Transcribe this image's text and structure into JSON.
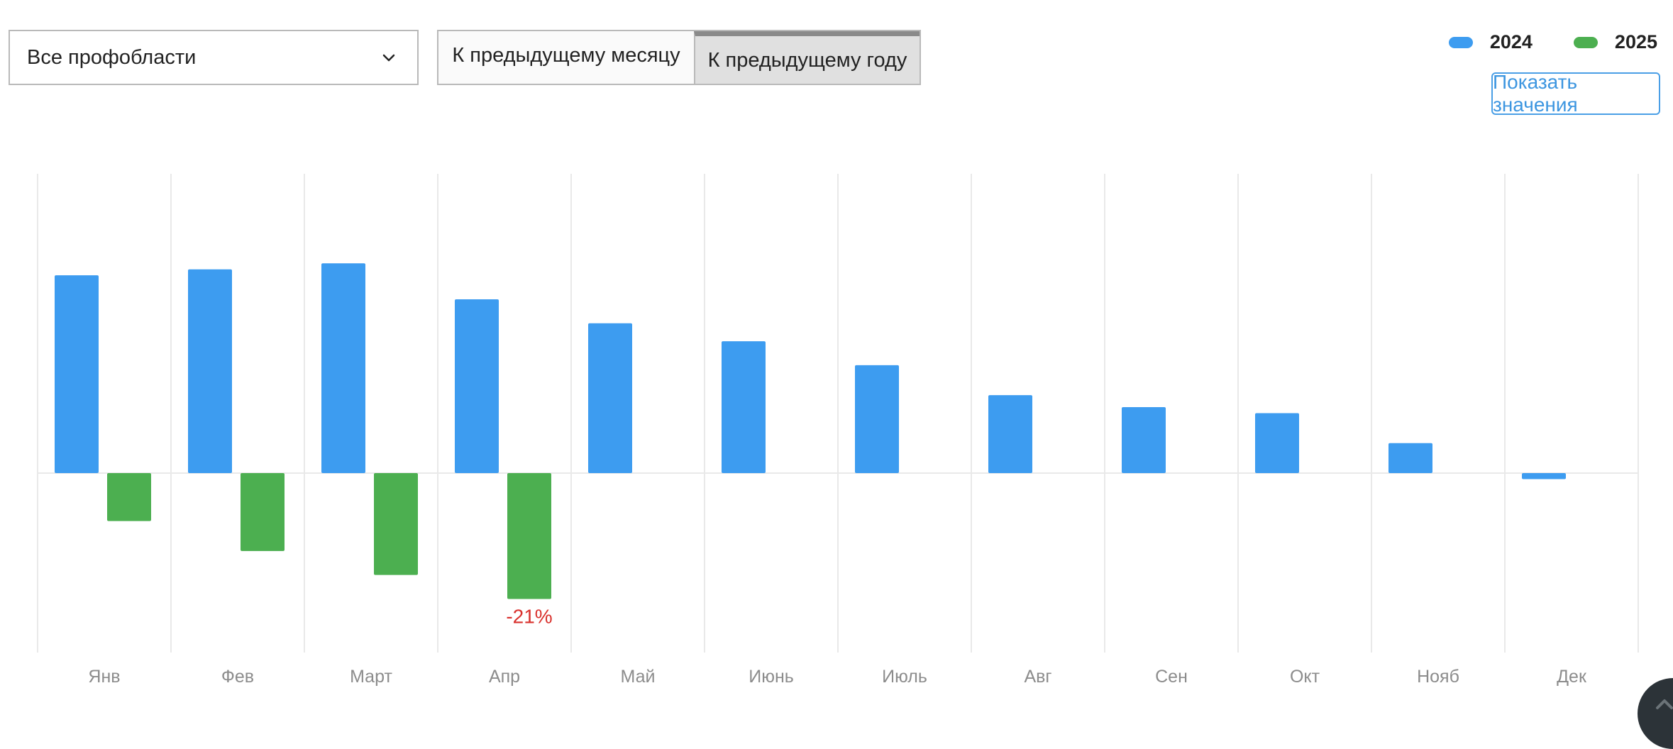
{
  "filters": {
    "area_select": {
      "value": "Все профобласти"
    },
    "compare_toggle": {
      "options": [
        "К предыдущему месяцу",
        "К предыдущему году"
      ],
      "active_index": 1
    }
  },
  "legend": {
    "items": [
      {
        "label": "2024",
        "color": "#3d9cf0"
      },
      {
        "label": "2025",
        "color": "#4caf50"
      }
    ]
  },
  "show_values_button": {
    "label": "Показать значения"
  },
  "colors": {
    "series_2024": "#3d9cf0",
    "series_2025": "#4caf50",
    "highlight_label": "#d9302c",
    "grid": "#e9e9e9",
    "tick_label": "#8c8c8c"
  },
  "chart_data": {
    "type": "bar",
    "categories": [
      "Янв",
      "Фев",
      "Март",
      "Апр",
      "Май",
      "Июнь",
      "Июль",
      "Авг",
      "Сен",
      "Окт",
      "Нояб",
      "Дек"
    ],
    "series": [
      {
        "name": "2024",
        "color": "#3d9cf0",
        "values": [
          33,
          34,
          35,
          29,
          25,
          22,
          18,
          13,
          11,
          10,
          5,
          -1
        ]
      },
      {
        "name": "2025",
        "color": "#4caf50",
        "values": [
          -8,
          -13,
          -17,
          -21,
          null,
          null,
          null,
          null,
          null,
          null,
          null,
          null
        ]
      }
    ],
    "ylim": [
      -30,
      50
    ],
    "grid": true,
    "zero_line": true,
    "annotations": [
      {
        "series": "2025",
        "category": "Апр",
        "text": "-21%",
        "color": "#d9302c"
      }
    ],
    "legend_position": "top-right",
    "title": "",
    "xlabel": "",
    "ylabel": ""
  }
}
